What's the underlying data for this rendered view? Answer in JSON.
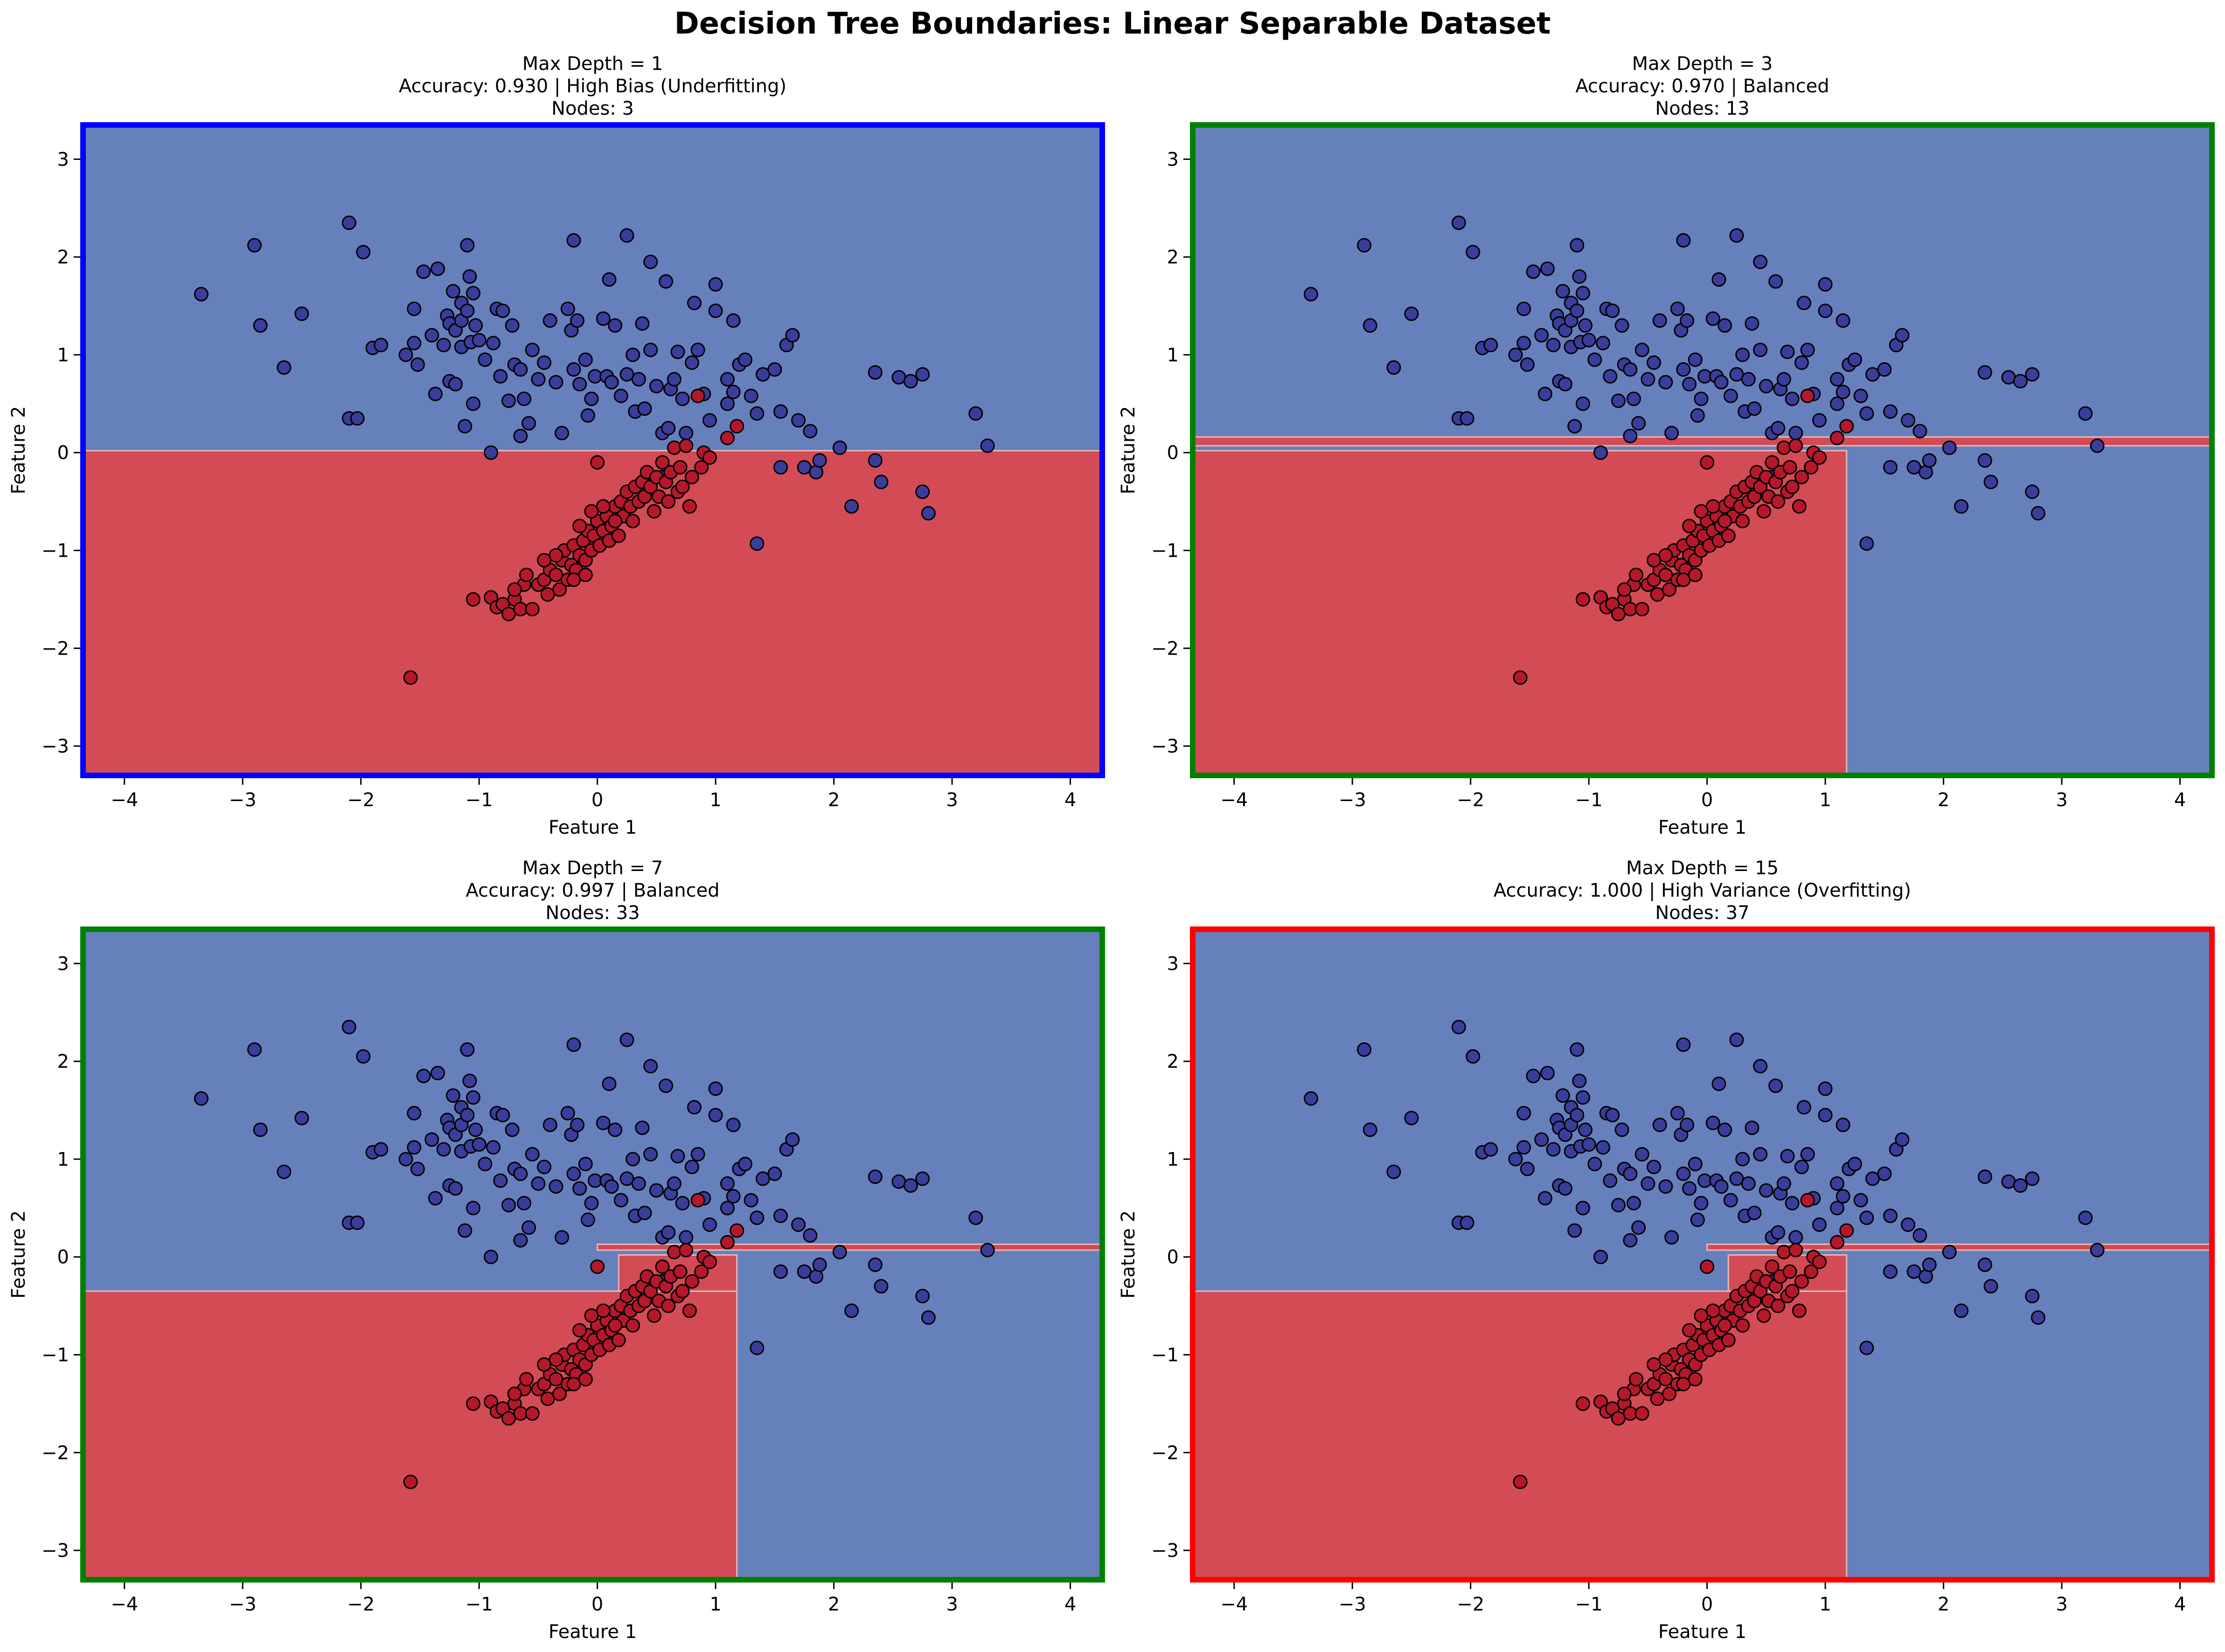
{
  "figure_title": "Decision Tree Boundaries: Linear Separable Dataset",
  "colors": {
    "class0_region": "#6680bb",
    "class1_region": "#d24b55",
    "class0_point": "#3b3d9a",
    "class1_point": "#b5172b",
    "boundary_line": "#e6b8b8",
    "underfit_border": "#0000ff",
    "balanced_border": "#008000",
    "overfit_border": "#ff0000"
  },
  "chart_data": [
    {
      "type": "scatter",
      "title_lines": [
        "Max Depth = 1",
        "Accuracy: 0.930 | High Bias (Underfitting)",
        "Nodes: 3"
      ],
      "xlabel": "Feature 1",
      "ylabel": "Feature 2",
      "xlim": [
        -4.35,
        4.27
      ],
      "ylim": [
        -3.3,
        3.35
      ],
      "xticks": [
        -4,
        -3,
        -2,
        -1,
        0,
        1,
        2,
        3,
        4
      ],
      "yticks": [
        -3,
        -2,
        -1,
        0,
        1,
        2,
        3
      ],
      "border": "underfit_border",
      "class1_regions": [
        [
          -4.35,
          4.27,
          -3.3,
          0.02
        ]
      ],
      "series": [
        {
          "class": 0,
          "points": [
            [
              -3.35,
              1.62
            ],
            [
              -2.9,
              2.12
            ],
            [
              -2.85,
              1.3
            ],
            [
              -2.65,
              0.87
            ],
            [
              -2.5,
              1.42
            ],
            [
              -2.1,
              2.35
            ],
            [
              -2.1,
              0.35
            ],
            [
              -2.03,
              0.35
            ],
            [
              -1.98,
              2.05
            ],
            [
              -1.9,
              1.07
            ],
            [
              -1.83,
              1.1
            ],
            [
              -1.62,
              1.0
            ],
            [
              -1.55,
              1.47
            ],
            [
              -1.55,
              1.12
            ],
            [
              -1.52,
              0.9
            ],
            [
              -1.47,
              1.85
            ],
            [
              -1.4,
              1.2
            ],
            [
              -1.37,
              0.6
            ],
            [
              -1.35,
              1.88
            ],
            [
              -1.3,
              1.1
            ],
            [
              -1.27,
              1.4
            ],
            [
              -1.25,
              1.32
            ],
            [
              -1.25,
              0.73
            ],
            [
              -1.22,
              1.65
            ],
            [
              -1.2,
              1.25
            ],
            [
              -1.2,
              0.7
            ],
            [
              -1.15,
              1.53
            ],
            [
              -1.15,
              1.35
            ],
            [
              -1.15,
              1.08
            ],
            [
              -1.12,
              0.27
            ],
            [
              -1.1,
              1.45
            ],
            [
              -1.1,
              2.12
            ],
            [
              -1.08,
              1.8
            ],
            [
              -1.07,
              1.13
            ],
            [
              -1.05,
              1.63
            ],
            [
              -1.05,
              0.5
            ],
            [
              -1.03,
              1.3
            ],
            [
              -1.0,
              1.15
            ],
            [
              -0.95,
              0.95
            ],
            [
              -0.9,
              0.0
            ],
            [
              -0.88,
              1.12
            ],
            [
              -0.85,
              1.47
            ],
            [
              -0.82,
              0.78
            ],
            [
              -0.8,
              1.45
            ],
            [
              -0.75,
              0.53
            ],
            [
              -0.72,
              1.3
            ],
            [
              -0.7,
              0.9
            ],
            [
              -0.65,
              0.85
            ],
            [
              -0.65,
              0.17
            ],
            [
              -0.62,
              0.55
            ],
            [
              -0.58,
              0.3
            ],
            [
              -0.55,
              1.05
            ],
            [
              -0.5,
              0.75
            ],
            [
              -0.45,
              0.92
            ],
            [
              -0.4,
              1.35
            ],
            [
              -0.35,
              0.72
            ],
            [
              -0.3,
              0.2
            ],
            [
              -0.25,
              1.47
            ],
            [
              -0.22,
              1.25
            ],
            [
              -0.2,
              2.17
            ],
            [
              -0.2,
              0.85
            ],
            [
              -0.17,
              1.35
            ],
            [
              -0.15,
              0.7
            ],
            [
              -0.1,
              0.95
            ],
            [
              -0.08,
              0.38
            ],
            [
              -0.05,
              0.55
            ],
            [
              -0.02,
              0.78
            ],
            [
              0.05,
              1.37
            ],
            [
              0.08,
              0.78
            ],
            [
              0.1,
              1.77
            ],
            [
              0.12,
              0.72
            ],
            [
              0.15,
              1.3
            ],
            [
              0.2,
              0.58
            ],
            [
              0.25,
              0.8
            ],
            [
              0.25,
              2.22
            ],
            [
              0.3,
              1.0
            ],
            [
              0.32,
              0.42
            ],
            [
              0.35,
              0.75
            ],
            [
              0.38,
              1.32
            ],
            [
              0.4,
              0.45
            ],
            [
              0.45,
              1.95
            ],
            [
              0.45,
              1.05
            ],
            [
              0.5,
              0.68
            ],
            [
              0.55,
              0.2
            ],
            [
              0.58,
              1.75
            ],
            [
              0.6,
              0.25
            ],
            [
              0.62,
              0.65
            ],
            [
              0.65,
              0.75
            ],
            [
              0.68,
              1.03
            ],
            [
              0.72,
              0.55
            ],
            [
              0.75,
              0.2
            ],
            [
              0.8,
              0.92
            ],
            [
              0.82,
              1.53
            ],
            [
              0.85,
              1.05
            ],
            [
              0.9,
              0.6
            ],
            [
              0.95,
              0.33
            ],
            [
              1.0,
              1.45
            ],
            [
              1.0,
              1.72
            ],
            [
              1.1,
              0.75
            ],
            [
              1.1,
              0.5
            ],
            [
              1.15,
              1.35
            ],
            [
              1.15,
              0.62
            ],
            [
              1.2,
              0.9
            ],
            [
              1.25,
              0.95
            ],
            [
              1.3,
              0.58
            ],
            [
              1.35,
              0.4
            ],
            [
              1.4,
              0.8
            ],
            [
              1.5,
              0.85
            ],
            [
              1.55,
              0.42
            ],
            [
              1.6,
              1.1
            ],
            [
              1.65,
              1.2
            ],
            [
              1.7,
              0.33
            ],
            [
              1.8,
              0.22
            ],
            [
              1.55,
              -0.15
            ],
            [
              1.75,
              -0.15
            ],
            [
              1.85,
              -0.2
            ],
            [
              1.88,
              -0.08
            ],
            [
              2.05,
              0.05
            ],
            [
              2.15,
              -0.55
            ],
            [
              2.35,
              -0.08
            ],
            [
              2.4,
              -0.3
            ],
            [
              2.35,
              0.82
            ],
            [
              2.55,
              0.77
            ],
            [
              2.65,
              0.73
            ],
            [
              2.75,
              0.8
            ],
            [
              2.75,
              -0.4
            ],
            [
              2.8,
              -0.62
            ],
            [
              3.2,
              0.4
            ],
            [
              3.3,
              0.07
            ],
            [
              1.35,
              -0.93
            ],
            [
              0.55,
              -0.25
            ]
          ]
        },
        {
          "class": 1,
          "points": [
            [
              -1.58,
              -2.3
            ],
            [
              -1.05,
              -1.5
            ],
            [
              -0.9,
              -1.48
            ],
            [
              -0.85,
              -1.58
            ],
            [
              -0.8,
              -1.55
            ],
            [
              -0.75,
              -1.65
            ],
            [
              -0.7,
              -1.5
            ],
            [
              -0.65,
              -1.6
            ],
            [
              -0.62,
              -1.35
            ],
            [
              -0.55,
              -1.6
            ],
            [
              -0.5,
              -1.35
            ],
            [
              -0.45,
              -1.3
            ],
            [
              -0.42,
              -1.45
            ],
            [
              -0.4,
              -1.2
            ],
            [
              -0.35,
              -1.25
            ],
            [
              -0.32,
              -1.4
            ],
            [
              -0.3,
              -1.1
            ],
            [
              -0.28,
              -1.0
            ],
            [
              -0.25,
              -1.3
            ],
            [
              -0.22,
              -1.15
            ],
            [
              -0.2,
              -0.95
            ],
            [
              -0.18,
              -1.2
            ],
            [
              -0.15,
              -1.05
            ],
            [
              -0.12,
              -0.9
            ],
            [
              -0.1,
              -1.1
            ],
            [
              -0.08,
              -0.8
            ],
            [
              -0.05,
              -1.0
            ],
            [
              -0.03,
              -0.85
            ],
            [
              0.0,
              -0.7
            ],
            [
              0.02,
              -0.95
            ],
            [
              0.05,
              -0.8
            ],
            [
              0.08,
              -0.65
            ],
            [
              0.1,
              -0.9
            ],
            [
              0.12,
              -0.75
            ],
            [
              0.15,
              -0.55
            ],
            [
              0.18,
              -0.85
            ],
            [
              0.2,
              -0.5
            ],
            [
              0.22,
              -0.65
            ],
            [
              0.25,
              -0.4
            ],
            [
              0.28,
              -0.55
            ],
            [
              0.3,
              -0.7
            ],
            [
              0.32,
              -0.35
            ],
            [
              0.35,
              -0.5
            ],
            [
              0.38,
              -0.3
            ],
            [
              0.4,
              -0.45
            ],
            [
              0.42,
              -0.2
            ],
            [
              0.45,
              -0.35
            ],
            [
              0.48,
              -0.6
            ],
            [
              0.5,
              -0.25
            ],
            [
              0.52,
              -0.45
            ],
            [
              0.55,
              -0.1
            ],
            [
              0.58,
              -0.3
            ],
            [
              0.6,
              -0.5
            ],
            [
              0.62,
              -0.2
            ],
            [
              0.65,
              0.05
            ],
            [
              0.68,
              -0.4
            ],
            [
              0.7,
              -0.15
            ],
            [
              0.72,
              -0.35
            ],
            [
              0.75,
              0.07
            ],
            [
              0.78,
              -0.55
            ],
            [
              0.8,
              -0.25
            ],
            [
              0.85,
              0.58
            ],
            [
              0.88,
              -0.15
            ],
            [
              0.9,
              0.0
            ],
            [
              0.95,
              -0.05
            ],
            [
              1.1,
              0.15
            ],
            [
              1.18,
              0.27
            ],
            [
              0.0,
              -0.1
            ],
            [
              -0.15,
              -0.75
            ],
            [
              0.05,
              -0.55
            ],
            [
              -0.05,
              -0.6
            ],
            [
              -0.2,
              -1.3
            ],
            [
              -0.35,
              -1.05
            ],
            [
              -0.45,
              -1.1
            ],
            [
              -0.6,
              -1.25
            ],
            [
              -0.7,
              -1.4
            ],
            [
              -0.1,
              -1.25
            ],
            [
              0.15,
              -0.7
            ]
          ]
        }
      ]
    },
    {
      "type": "scatter",
      "title_lines": [
        "Max Depth = 3",
        "Accuracy: 0.970 | Balanced",
        "Nodes: 13"
      ],
      "xlabel": "Feature 1",
      "ylabel": "Feature 2",
      "xlim": [
        -4.35,
        4.27
      ],
      "ylim": [
        -3.3,
        3.35
      ],
      "xticks": [
        -4,
        -3,
        -2,
        -1,
        0,
        1,
        2,
        3,
        4
      ],
      "yticks": [
        -3,
        -2,
        -1,
        0,
        1,
        2,
        3
      ],
      "border": "balanced_border",
      "class1_regions": [
        [
          -4.35,
          1.18,
          -3.3,
          0.02
        ],
        [
          -4.35,
          4.27,
          0.07,
          0.16
        ]
      ],
      "series_ref": 0
    },
    {
      "type": "scatter",
      "title_lines": [
        "Max Depth = 7",
        "Accuracy: 0.997 | Balanced",
        "Nodes: 33"
      ],
      "xlabel": "Feature 1",
      "ylabel": "Feature 2",
      "xlim": [
        -4.35,
        4.27
      ],
      "ylim": [
        -3.3,
        3.35
      ],
      "xticks": [
        -4,
        -3,
        -2,
        -1,
        0,
        1,
        2,
        3,
        4
      ],
      "yticks": [
        -3,
        -2,
        -1,
        0,
        1,
        2,
        3
      ],
      "border": "balanced_border",
      "class1_regions": [
        [
          -4.35,
          1.18,
          -3.3,
          -0.35
        ],
        [
          0.18,
          1.18,
          -0.35,
          0.02
        ],
        [
          0.0,
          4.27,
          0.07,
          0.13
        ]
      ],
      "series_ref": 0
    },
    {
      "type": "scatter",
      "title_lines": [
        "Max Depth = 15",
        "Accuracy: 1.000 | High Variance (Overfitting)",
        "Nodes: 37"
      ],
      "xlabel": "Feature 1",
      "ylabel": "Feature 2",
      "xlim": [
        -4.35,
        4.27
      ],
      "ylim": [
        -3.3,
        3.35
      ],
      "xticks": [
        -4,
        -3,
        -2,
        -1,
        0,
        1,
        2,
        3,
        4
      ],
      "yticks": [
        -3,
        -2,
        -1,
        0,
        1,
        2,
        3
      ],
      "border": "overfit_border",
      "class1_regions": [
        [
          -4.35,
          1.18,
          -3.3,
          -0.35
        ],
        [
          0.18,
          1.18,
          -0.35,
          0.02
        ],
        [
          0.0,
          4.27,
          0.07,
          0.13
        ]
      ],
      "series_ref": 0
    }
  ]
}
